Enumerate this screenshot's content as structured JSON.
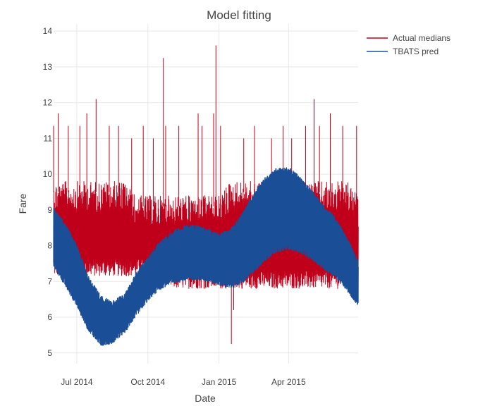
{
  "chart_data": {
    "type": "line",
    "title": "Model fitting",
    "xlabel": "Date",
    "ylabel": "Fare",
    "x_range": [
      "2014-06-01",
      "2015-06-30"
    ],
    "xticks": [
      "Jul 2014",
      "Oct 2014",
      "Jan 2015",
      "Apr 2015"
    ],
    "xtick_dates": [
      "2014-07-01",
      "2014-10-01",
      "2015-01-01",
      "2015-04-01"
    ],
    "ylim": [
      4.7,
      14.2
    ],
    "yticks": [
      5,
      6,
      7,
      8,
      9,
      10,
      11,
      12,
      13,
      14
    ],
    "grid": true,
    "legend_position": "top-right",
    "series": [
      {
        "name": "Actual medians",
        "color": "#c0001a",
        "description_values": "hourly medians oscillating between about 6.8 and 9.8 with spikes",
        "x": [
          "2014-06-01",
          "2014-06-15",
          "2014-07-01",
          "2014-07-15",
          "2014-08-01",
          "2014-08-15",
          "2014-09-01",
          "2014-09-15",
          "2014-10-01",
          "2014-10-15",
          "2014-11-01",
          "2014-11-15",
          "2014-12-01",
          "2014-12-15",
          "2015-01-01",
          "2015-01-15",
          "2015-02-01",
          "2015-02-15",
          "2015-03-01",
          "2015-03-15",
          "2015-04-01",
          "2015-04-15",
          "2015-05-01",
          "2015-05-15",
          "2015-06-01",
          "2015-06-15",
          "2015-06-30"
        ],
        "low": [
          7.15,
          7.15,
          7.15,
          7.15,
          7.15,
          7.15,
          7.15,
          7.15,
          7.15,
          7.15,
          6.8,
          6.8,
          6.8,
          6.8,
          6.8,
          6.8,
          6.8,
          6.8,
          6.8,
          6.8,
          6.8,
          6.8,
          6.8,
          6.8,
          6.8,
          6.8,
          6.8
        ],
        "high": [
          9.8,
          9.8,
          9.8,
          9.8,
          9.8,
          9.8,
          9.8,
          9.4,
          9.4,
          9.4,
          9.4,
          9.4,
          9.4,
          9.4,
          9.4,
          9.8,
          9.8,
          9.8,
          9.8,
          9.8,
          9.8,
          9.8,
          9.8,
          9.8,
          9.8,
          9.8,
          9.4
        ],
        "spikes": [
          {
            "x": "2014-06-01",
            "y": 11.35
          },
          {
            "x": "2014-06-07",
            "y": 11.7
          },
          {
            "x": "2014-06-20",
            "y": 11.35
          },
          {
            "x": "2014-07-05",
            "y": 11.35
          },
          {
            "x": "2014-07-14",
            "y": 11.7
          },
          {
            "x": "2014-07-26",
            "y": 12.1
          },
          {
            "x": "2014-08-12",
            "y": 11.35
          },
          {
            "x": "2014-08-24",
            "y": 11.35
          },
          {
            "x": "2014-09-10",
            "y": 11.0
          },
          {
            "x": "2014-09-25",
            "y": 11.35
          },
          {
            "x": "2014-10-08",
            "y": 11.0
          },
          {
            "x": "2014-10-21",
            "y": 13.25
          },
          {
            "x": "2014-10-24",
            "y": 11.35
          },
          {
            "x": "2014-11-10",
            "y": 11.35
          },
          {
            "x": "2014-12-05",
            "y": 11.7
          },
          {
            "x": "2014-12-10",
            "y": 11.35
          },
          {
            "x": "2014-12-25",
            "y": 11.7
          },
          {
            "x": "2014-12-28",
            "y": 13.6
          },
          {
            "x": "2015-01-03",
            "y": 11.35
          },
          {
            "x": "2015-02-02",
            "y": 11.0
          },
          {
            "x": "2015-02-16",
            "y": 11.35
          },
          {
            "x": "2015-03-10",
            "y": 11.0
          },
          {
            "x": "2015-03-25",
            "y": 11.35
          },
          {
            "x": "2015-04-05",
            "y": 11.0
          },
          {
            "x": "2015-04-23",
            "y": 11.35
          },
          {
            "x": "2015-05-04",
            "y": 12.1
          },
          {
            "x": "2015-05-11",
            "y": 11.35
          },
          {
            "x": "2015-05-25",
            "y": 11.7
          },
          {
            "x": "2015-06-10",
            "y": 11.35
          },
          {
            "x": "2015-06-28",
            "y": 11.35
          }
        ],
        "dips": [
          {
            "x": "2015-01-17",
            "y": 5.25
          },
          {
            "x": "2015-01-20",
            "y": 6.2
          }
        ]
      },
      {
        "name": "TBATS pred",
        "color": "#1a4e97",
        "x": [
          "2014-06-01",
          "2014-06-15",
          "2014-07-01",
          "2014-07-15",
          "2014-08-01",
          "2014-08-15",
          "2014-09-01",
          "2014-09-15",
          "2014-10-01",
          "2014-10-15",
          "2014-11-01",
          "2014-11-15",
          "2014-12-01",
          "2014-12-15",
          "2015-01-01",
          "2015-01-15",
          "2015-02-01",
          "2015-02-15",
          "2015-03-01",
          "2015-03-15",
          "2015-04-01",
          "2015-04-15",
          "2015-05-01",
          "2015-05-15",
          "2015-06-01",
          "2015-06-15",
          "2015-06-30"
        ],
        "low": [
          7.4,
          6.9,
          6.3,
          5.65,
          5.2,
          5.25,
          5.55,
          6.0,
          6.45,
          6.75,
          6.95,
          7.0,
          7.05,
          7.0,
          6.9,
          6.8,
          6.95,
          7.25,
          7.55,
          7.8,
          7.9,
          7.8,
          7.6,
          7.35,
          7.1,
          6.75,
          6.3
        ],
        "high": [
          9.05,
          8.65,
          8.05,
          7.2,
          6.6,
          6.45,
          6.65,
          7.25,
          7.7,
          8.1,
          8.4,
          8.55,
          8.6,
          8.5,
          8.35,
          8.45,
          8.95,
          9.5,
          9.9,
          10.15,
          10.2,
          9.95,
          9.55,
          9.15,
          8.8,
          8.25,
          7.6
        ]
      }
    ]
  }
}
